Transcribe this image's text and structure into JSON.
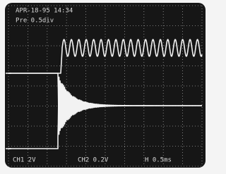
{
  "header": {
    "timestamp": "APR-18-95 14:34",
    "trigger": "Pre 0.5div"
  },
  "footer": {
    "ch1": "CH1  2V",
    "ch2": "CH2  0.2V",
    "time": "H 0.5ms"
  }
}
